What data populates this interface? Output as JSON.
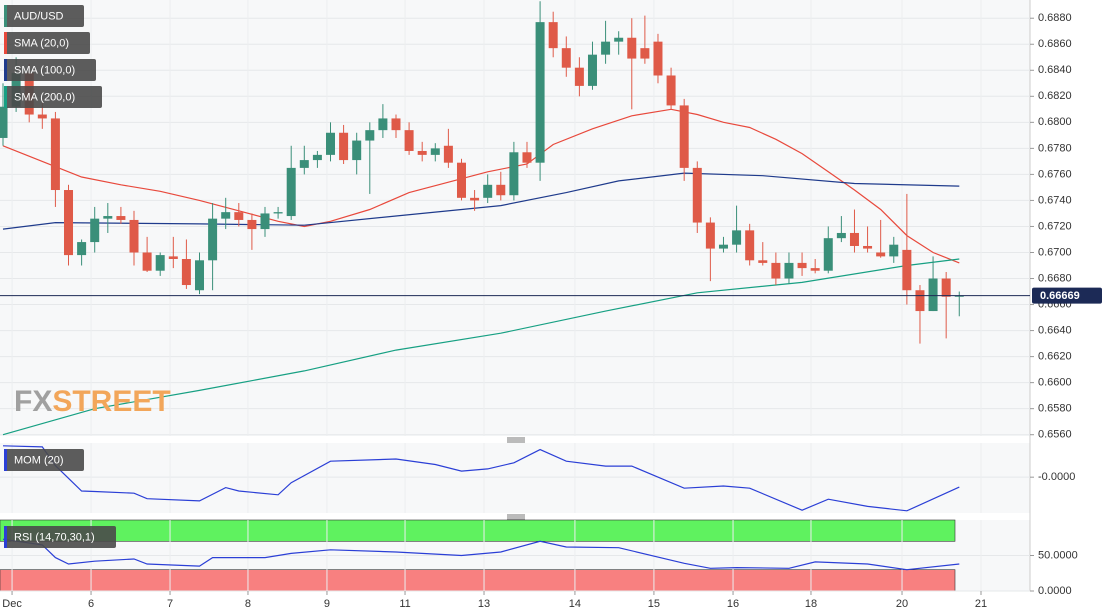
{
  "chart_data": [
    {
      "type": "candlestick",
      "title": "AUD/USD",
      "watermark": {
        "left": "FX",
        "right": "STREET"
      },
      "up_color": "#3a8f79",
      "down_color": "#df5a48",
      "x": [
        0,
        1,
        2,
        3,
        4,
        5,
        6,
        7,
        8,
        9,
        10,
        11,
        12,
        13,
        14,
        15,
        16,
        17,
        18,
        19,
        20,
        21,
        22,
        23,
        24,
        25,
        26,
        27,
        28,
        29,
        30,
        31,
        32,
        33,
        34,
        35,
        36,
        37,
        38,
        39,
        40,
        41,
        42,
        43,
        44,
        45,
        46,
        47,
        48,
        49,
        50,
        51,
        52,
        53,
        54,
        55,
        56,
        57,
        58,
        59,
        60,
        61,
        62,
        63,
        64,
        65,
        66,
        67,
        68,
        69,
        70,
        71,
        72,
        73
      ],
      "open": [
        0.6788,
        0.6812,
        0.6838,
        0.6806,
        0.6803,
        0.6748,
        0.6698,
        0.6708,
        0.6726,
        0.6728,
        0.6725,
        0.67,
        0.6686,
        0.6697,
        0.6695,
        0.6671,
        0.6694,
        0.6726,
        0.6731,
        0.6725,
        0.6718,
        0.673,
        0.6728,
        0.6765,
        0.6771,
        0.6775,
        0.6792,
        0.6771,
        0.6786,
        0.6794,
        0.6803,
        0.6794,
        0.6778,
        0.6775,
        0.6782,
        0.6769,
        0.6742,
        0.6742,
        0.6752,
        0.6744,
        0.6777,
        0.6769,
        0.6877,
        0.6857,
        0.6842,
        0.6828,
        0.6852,
        0.6862,
        0.6865,
        0.6857,
        0.6862,
        0.6836,
        0.6813,
        0.6765,
        0.6723,
        0.6703,
        0.6706,
        0.6717,
        0.6694,
        0.6692,
        0.668,
        0.6692,
        0.6688,
        0.6686,
        0.6711,
        0.6715,
        0.6705,
        0.67,
        0.6697,
        0.6702,
        0.6671,
        0.6655,
        0.668,
        0.6666
      ],
      "high": [
        0.683,
        0.685,
        0.6845,
        0.6818,
        0.6808,
        0.6752,
        0.671,
        0.6735,
        0.6738,
        0.6735,
        0.6732,
        0.6712,
        0.67,
        0.6712,
        0.671,
        0.67,
        0.6738,
        0.6742,
        0.6738,
        0.673,
        0.6735,
        0.6735,
        0.6782,
        0.6782,
        0.6778,
        0.68,
        0.6798,
        0.6792,
        0.68,
        0.6814,
        0.6806,
        0.68,
        0.6785,
        0.6784,
        0.6795,
        0.6772,
        0.6748,
        0.676,
        0.6762,
        0.6785,
        0.6785,
        0.6893,
        0.6885,
        0.6866,
        0.685,
        0.6862,
        0.6878,
        0.687,
        0.688,
        0.6882,
        0.6868,
        0.6842,
        0.6818,
        0.677,
        0.6727,
        0.6712,
        0.6736,
        0.6722,
        0.6708,
        0.67,
        0.67,
        0.67,
        0.6695,
        0.672,
        0.6728,
        0.6733,
        0.672,
        0.6725,
        0.6712,
        0.6745,
        0.6675,
        0.6697,
        0.6685,
        0.667
      ],
      "low": [
        0.6782,
        0.6808,
        0.68,
        0.6795,
        0.6735,
        0.669,
        0.669,
        0.67,
        0.6715,
        0.6722,
        0.669,
        0.6685,
        0.6682,
        0.6688,
        0.6672,
        0.6668,
        0.6671,
        0.6718,
        0.672,
        0.6702,
        0.6712,
        0.6726,
        0.6725,
        0.676,
        0.6765,
        0.677,
        0.6768,
        0.676,
        0.6745,
        0.6788,
        0.6788,
        0.6775,
        0.677,
        0.677,
        0.6765,
        0.674,
        0.6732,
        0.6738,
        0.674,
        0.674,
        0.6765,
        0.6755,
        0.685,
        0.6835,
        0.682,
        0.6825,
        0.6845,
        0.6852,
        0.681,
        0.6845,
        0.683,
        0.681,
        0.6755,
        0.6715,
        0.6678,
        0.67,
        0.67,
        0.669,
        0.669,
        0.6675,
        0.6676,
        0.6682,
        0.6684,
        0.6684,
        0.6708,
        0.67,
        0.67,
        0.6696,
        0.6692,
        0.666,
        0.663,
        0.6655,
        0.6634,
        0.6651
      ],
      "close": [
        0.6812,
        0.6838,
        0.6806,
        0.6803,
        0.6748,
        0.6698,
        0.6708,
        0.6726,
        0.6728,
        0.6725,
        0.67,
        0.6686,
        0.6698,
        0.6695,
        0.6675,
        0.6694,
        0.6726,
        0.6731,
        0.6725,
        0.6718,
        0.673,
        0.6731,
        0.6765,
        0.6771,
        0.6775,
        0.6792,
        0.6771,
        0.6786,
        0.6794,
        0.6803,
        0.6794,
        0.6778,
        0.6775,
        0.678,
        0.6769,
        0.6742,
        0.674,
        0.6752,
        0.6744,
        0.6777,
        0.6769,
        0.6877,
        0.6857,
        0.6842,
        0.6828,
        0.6852,
        0.6862,
        0.6865,
        0.6849,
        0.6849,
        0.6836,
        0.6813,
        0.6765,
        0.6723,
        0.6703,
        0.6706,
        0.6717,
        0.6694,
        0.6692,
        0.668,
        0.6692,
        0.6688,
        0.6686,
        0.6711,
        0.6715,
        0.6705,
        0.6703,
        0.6697,
        0.6706,
        0.6671,
        0.6655,
        0.668,
        0.6666,
        0.6667
      ],
      "series": [
        {
          "name": "SMA (20,0)",
          "color": "#e8493c",
          "x": [
            0,
            3,
            6,
            9,
            12,
            15,
            18,
            21,
            23,
            25,
            28,
            31,
            34,
            37,
            40,
            42,
            45,
            48,
            51,
            53,
            55,
            57,
            59,
            61,
            63,
            65,
            67,
            69,
            71,
            73
          ],
          "values": [
            0.6782,
            0.677,
            0.6758,
            0.6752,
            0.6747,
            0.674,
            0.6732,
            0.6724,
            0.672,
            0.6724,
            0.6733,
            0.6746,
            0.6754,
            0.6762,
            0.6768,
            0.6783,
            0.6795,
            0.6805,
            0.681,
            0.6806,
            0.68,
            0.6796,
            0.6787,
            0.6776,
            0.6762,
            0.6748,
            0.6733,
            0.6713,
            0.67,
            0.6692
          ]
        },
        {
          "name": "SMA (100,0)",
          "color": "#1f3b8c",
          "x": [
            0,
            4,
            15,
            23,
            30,
            38,
            43,
            47,
            52,
            58,
            65,
            73
          ],
          "values": [
            0.6718,
            0.6723,
            0.6722,
            0.6721,
            0.6728,
            0.6736,
            0.6746,
            0.6755,
            0.6761,
            0.6759,
            0.6753,
            0.6751
          ]
        },
        {
          "name": "SMA (200,0)",
          "color": "#17a083",
          "x": [
            0,
            7,
            15,
            23,
            30,
            38,
            46,
            53,
            61,
            69,
            73
          ],
          "values": [
            0.656,
            0.658,
            0.6594,
            0.6609,
            0.6625,
            0.6638,
            0.6655,
            0.6669,
            0.6677,
            0.669,
            0.6695
          ]
        }
      ],
      "last_price": 0.66669,
      "xlim": [
        -0.23,
        78.4
      ],
      "ylim": [
        0.6559,
        0.6894
      ],
      "yticks": [
        {
          "value": 0.656,
          "label": "0.6560"
        },
        {
          "value": 0.658,
          "label": "0.6580"
        },
        {
          "value": 0.66,
          "label": "0.6600"
        },
        {
          "value": 0.662,
          "label": "0.6620"
        },
        {
          "value": 0.664,
          "label": "0.6640"
        },
        {
          "value": 0.666,
          "label": "0.6660"
        },
        {
          "value": 0.668,
          "label": "0.6680"
        },
        {
          "value": 0.67,
          "label": "0.6700"
        },
        {
          "value": 0.672,
          "label": "0.6720"
        },
        {
          "value": 0.674,
          "label": "0.6740"
        },
        {
          "value": 0.676,
          "label": "0.6760"
        },
        {
          "value": 0.678,
          "label": "0.6780"
        },
        {
          "value": 0.68,
          "label": "0.6800"
        },
        {
          "value": 0.682,
          "label": "0.6820"
        },
        {
          "value": 0.684,
          "label": "0.6840"
        },
        {
          "value": 0.686,
          "label": "0.6860"
        },
        {
          "value": 0.688,
          "label": "0.6880"
        }
      ],
      "grid": true
    },
    {
      "type": "line",
      "title": "MOM (20)",
      "series": [
        {
          "color": "#2b3fd6",
          "x": [
            0,
            3,
            4,
            6,
            7,
            10,
            11,
            15,
            17,
            18,
            21,
            22,
            25,
            30,
            33,
            35,
            37,
            39,
            41,
            43,
            46,
            48,
            52,
            55,
            57,
            61,
            63,
            66,
            69,
            73
          ],
          "values": [
            0.0057,
            0.0055,
            0.0021,
            -0.0025,
            -0.0026,
            -0.0029,
            -0.0039,
            -0.0043,
            -0.0019,
            -0.0025,
            -0.0032,
            -0.001,
            0.0029,
            0.0033,
            0.0023,
            0.0011,
            0.0015,
            0.0026,
            0.005,
            0.0029,
            0.002,
            0.002,
            -0.002,
            -0.0016,
            -0.002,
            -0.006,
            -0.004,
            -0.0053,
            -0.0061,
            -0.0018
          ]
        }
      ],
      "xlim": [
        -0.23,
        78.4
      ],
      "ylim": [
        -0.0065,
        0.0062
      ],
      "yticks": [
        {
          "value": 0,
          "label": "-0.0000"
        }
      ],
      "grid": true
    },
    {
      "type": "line",
      "title": "RSI (14,70,30,1)",
      "bands": [
        {
          "from": 70,
          "to": 100,
          "color": "#5ff25f"
        },
        {
          "from": 0,
          "to": 30,
          "color": "#f88080"
        }
      ],
      "series": [
        {
          "color": "#2b3fd6",
          "x": [
            0,
            3,
            4,
            5,
            7,
            10,
            11,
            15,
            16,
            20,
            22,
            25,
            30,
            35,
            38,
            41,
            43,
            47,
            52,
            54,
            56,
            60,
            62,
            66,
            69,
            73
          ],
          "values": [
            73,
            65,
            47,
            38,
            42,
            45,
            38,
            35,
            47,
            47,
            53,
            58,
            55,
            50,
            55,
            70,
            62,
            61,
            39,
            32,
            33,
            32,
            41,
            38,
            30,
            38
          ]
        }
      ],
      "xlim": [
        -0.23,
        78.4
      ],
      "ylim": [
        0,
        100
      ],
      "yticks": [
        {
          "value": 0,
          "label": "0.0000"
        },
        {
          "value": 50,
          "label": "50.0000"
        }
      ],
      "xticks": [
        {
          "value": 0.69,
          "label": "Dec"
        },
        {
          "value": 6.72,
          "label": "6"
        },
        {
          "value": 12.75,
          "label": "7"
        },
        {
          "value": 18.7,
          "label": "8"
        },
        {
          "value": 24.73,
          "label": "9"
        },
        {
          "value": 30.69,
          "label": "11"
        },
        {
          "value": 36.72,
          "label": "13"
        },
        {
          "value": 43.66,
          "label": "14"
        },
        {
          "value": 49.69,
          "label": "15"
        },
        {
          "value": 55.73,
          "label": "16"
        },
        {
          "value": 61.68,
          "label": "18"
        },
        {
          "value": 68.63,
          "label": "20"
        },
        {
          "value": 74.66,
          "label": "21"
        }
      ],
      "grid": true
    }
  ]
}
